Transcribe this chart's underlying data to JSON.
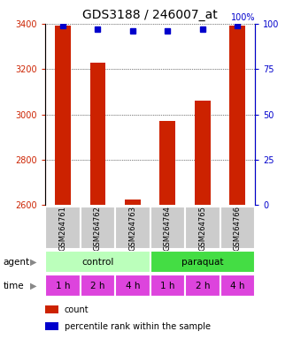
{
  "title": "GDS3188 / 246007_at",
  "samples": [
    "GSM264761",
    "GSM264762",
    "GSM264763",
    "GSM264764",
    "GSM264765",
    "GSM264766"
  ],
  "counts": [
    3390,
    3230,
    2625,
    2970,
    3060,
    3390
  ],
  "percentiles": [
    99,
    97,
    96,
    96,
    97,
    99
  ],
  "ylim_left": [
    2600,
    3400
  ],
  "ylim_right": [
    0,
    100
  ],
  "yticks_left": [
    2600,
    2800,
    3000,
    3200,
    3400
  ],
  "yticks_right": [
    0,
    25,
    50,
    75,
    100
  ],
  "bar_color": "#cc2200",
  "dot_color": "#0000cc",
  "bar_width": 0.45,
  "agent_labels": [
    "control",
    "paraquat"
  ],
  "agent_colors": [
    "#bbffbb",
    "#44dd44"
  ],
  "time_labels": [
    "1 h",
    "2 h",
    "4 h",
    "1 h",
    "2 h",
    "4 h"
  ],
  "time_color": "#dd44dd",
  "sample_box_color": "#cccccc",
  "title_fontsize": 10,
  "tick_fontsize": 7,
  "sample_fontsize": 6,
  "label_fontsize": 7.5,
  "legend_fontsize": 7
}
